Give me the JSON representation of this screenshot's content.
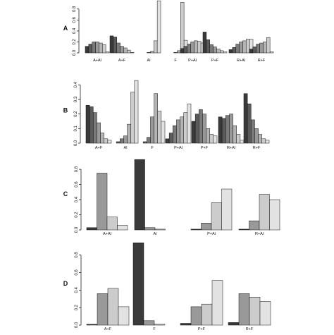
{
  "shades": [
    "#3a3a3a",
    "#5a5a5a",
    "#7a7a7a",
    "#999999",
    "#b4b4b4",
    "#cccccc",
    "#e2e2e2"
  ],
  "chart_data": [
    {
      "type": "bar",
      "panel_label": "A",
      "ylim": [
        0,
        0.9
      ],
      "yticks": [
        0.0,
        0.2,
        0.4,
        0.6,
        0.8
      ],
      "grid": false,
      "categories": [
        "A+Al",
        "A+F",
        "Al",
        "F",
        "P+Al",
        "P+F",
        "R+Al",
        "R+F"
      ],
      "groups": [
        [
          0.12,
          0.16,
          0.2,
          0.2,
          0.18,
          0.15,
          0.02
        ],
        [
          0.31,
          0.29,
          0.18,
          0.12,
          0.09,
          0.05,
          0.01
        ],
        [
          0.0,
          0.0,
          0.0,
          0.01,
          0.03,
          0.22,
          0.95
        ],
        [
          0.0,
          0.0,
          0.0,
          0.01,
          0.04,
          0.92,
          0.23
        ],
        [
          0.08,
          0.12,
          0.16,
          0.2,
          0.22,
          0.21,
          0.18
        ],
        [
          0.38,
          0.24,
          0.15,
          0.11,
          0.07,
          0.04,
          0.02
        ],
        [
          0.06,
          0.1,
          0.16,
          0.2,
          0.22,
          0.25,
          0.25
        ],
        [
          0.07,
          0.11,
          0.16,
          0.18,
          0.2,
          0.28,
          0.02
        ]
      ]
    },
    {
      "type": "bar",
      "panel_label": "B",
      "ylim": [
        0,
        0.45
      ],
      "yticks": [
        0.0,
        0.1,
        0.2,
        0.3,
        0.4
      ],
      "grid": false,
      "categories": [
        "A+F",
        "Al",
        "F",
        "P+Al",
        "P+F",
        "R+Al",
        "R+F"
      ],
      "groups": [
        [
          0.26,
          0.25,
          0.21,
          0.14,
          0.07,
          0.03,
          0.02
        ],
        [
          0.0,
          0.01,
          0.03,
          0.05,
          0.13,
          0.35,
          0.43
        ],
        [
          0.0,
          0.01,
          0.04,
          0.18,
          0.34,
          0.22,
          0.15
        ],
        [
          0.03,
          0.07,
          0.12,
          0.16,
          0.18,
          0.21,
          0.27
        ],
        [
          0.15,
          0.2,
          0.23,
          0.2,
          0.1,
          0.06,
          0.05
        ],
        [
          0.18,
          0.17,
          0.19,
          0.2,
          0.12,
          0.06,
          0.02
        ],
        [
          0.34,
          0.27,
          0.16,
          0.1,
          0.06,
          0.03,
          0.02
        ]
      ]
    },
    {
      "type": "bar",
      "panel_label": "C",
      "ylim": [
        0,
        0.95
      ],
      "yticks": [
        0.0,
        0.2,
        0.4,
        0.6,
        0.8
      ],
      "grid": false,
      "categories": [
        "A+Al",
        "Al",
        "P+Al",
        "R+Al"
      ],
      "groups": [
        [
          0.03,
          0.75,
          0.17,
          0.06
        ],
        [
          0.93,
          0.03,
          0.01,
          0.0
        ],
        [
          0.01,
          0.09,
          0.36,
          0.54
        ],
        [
          0.01,
          0.12,
          0.47,
          0.4
        ]
      ]
    },
    {
      "type": "bar",
      "panel_label": "D",
      "ylim": [
        0,
        0.95
      ],
      "yticks": [
        0.0,
        0.2,
        0.4,
        0.6,
        0.8
      ],
      "grid": false,
      "categories": [
        "A+F",
        "F",
        "P+F",
        "R+F"
      ],
      "groups": [
        [
          0.01,
          0.36,
          0.42,
          0.21
        ],
        [
          0.94,
          0.05,
          0.01,
          0.0
        ],
        [
          0.02,
          0.21,
          0.24,
          0.51
        ],
        [
          0.03,
          0.36,
          0.32,
          0.27
        ]
      ]
    }
  ]
}
